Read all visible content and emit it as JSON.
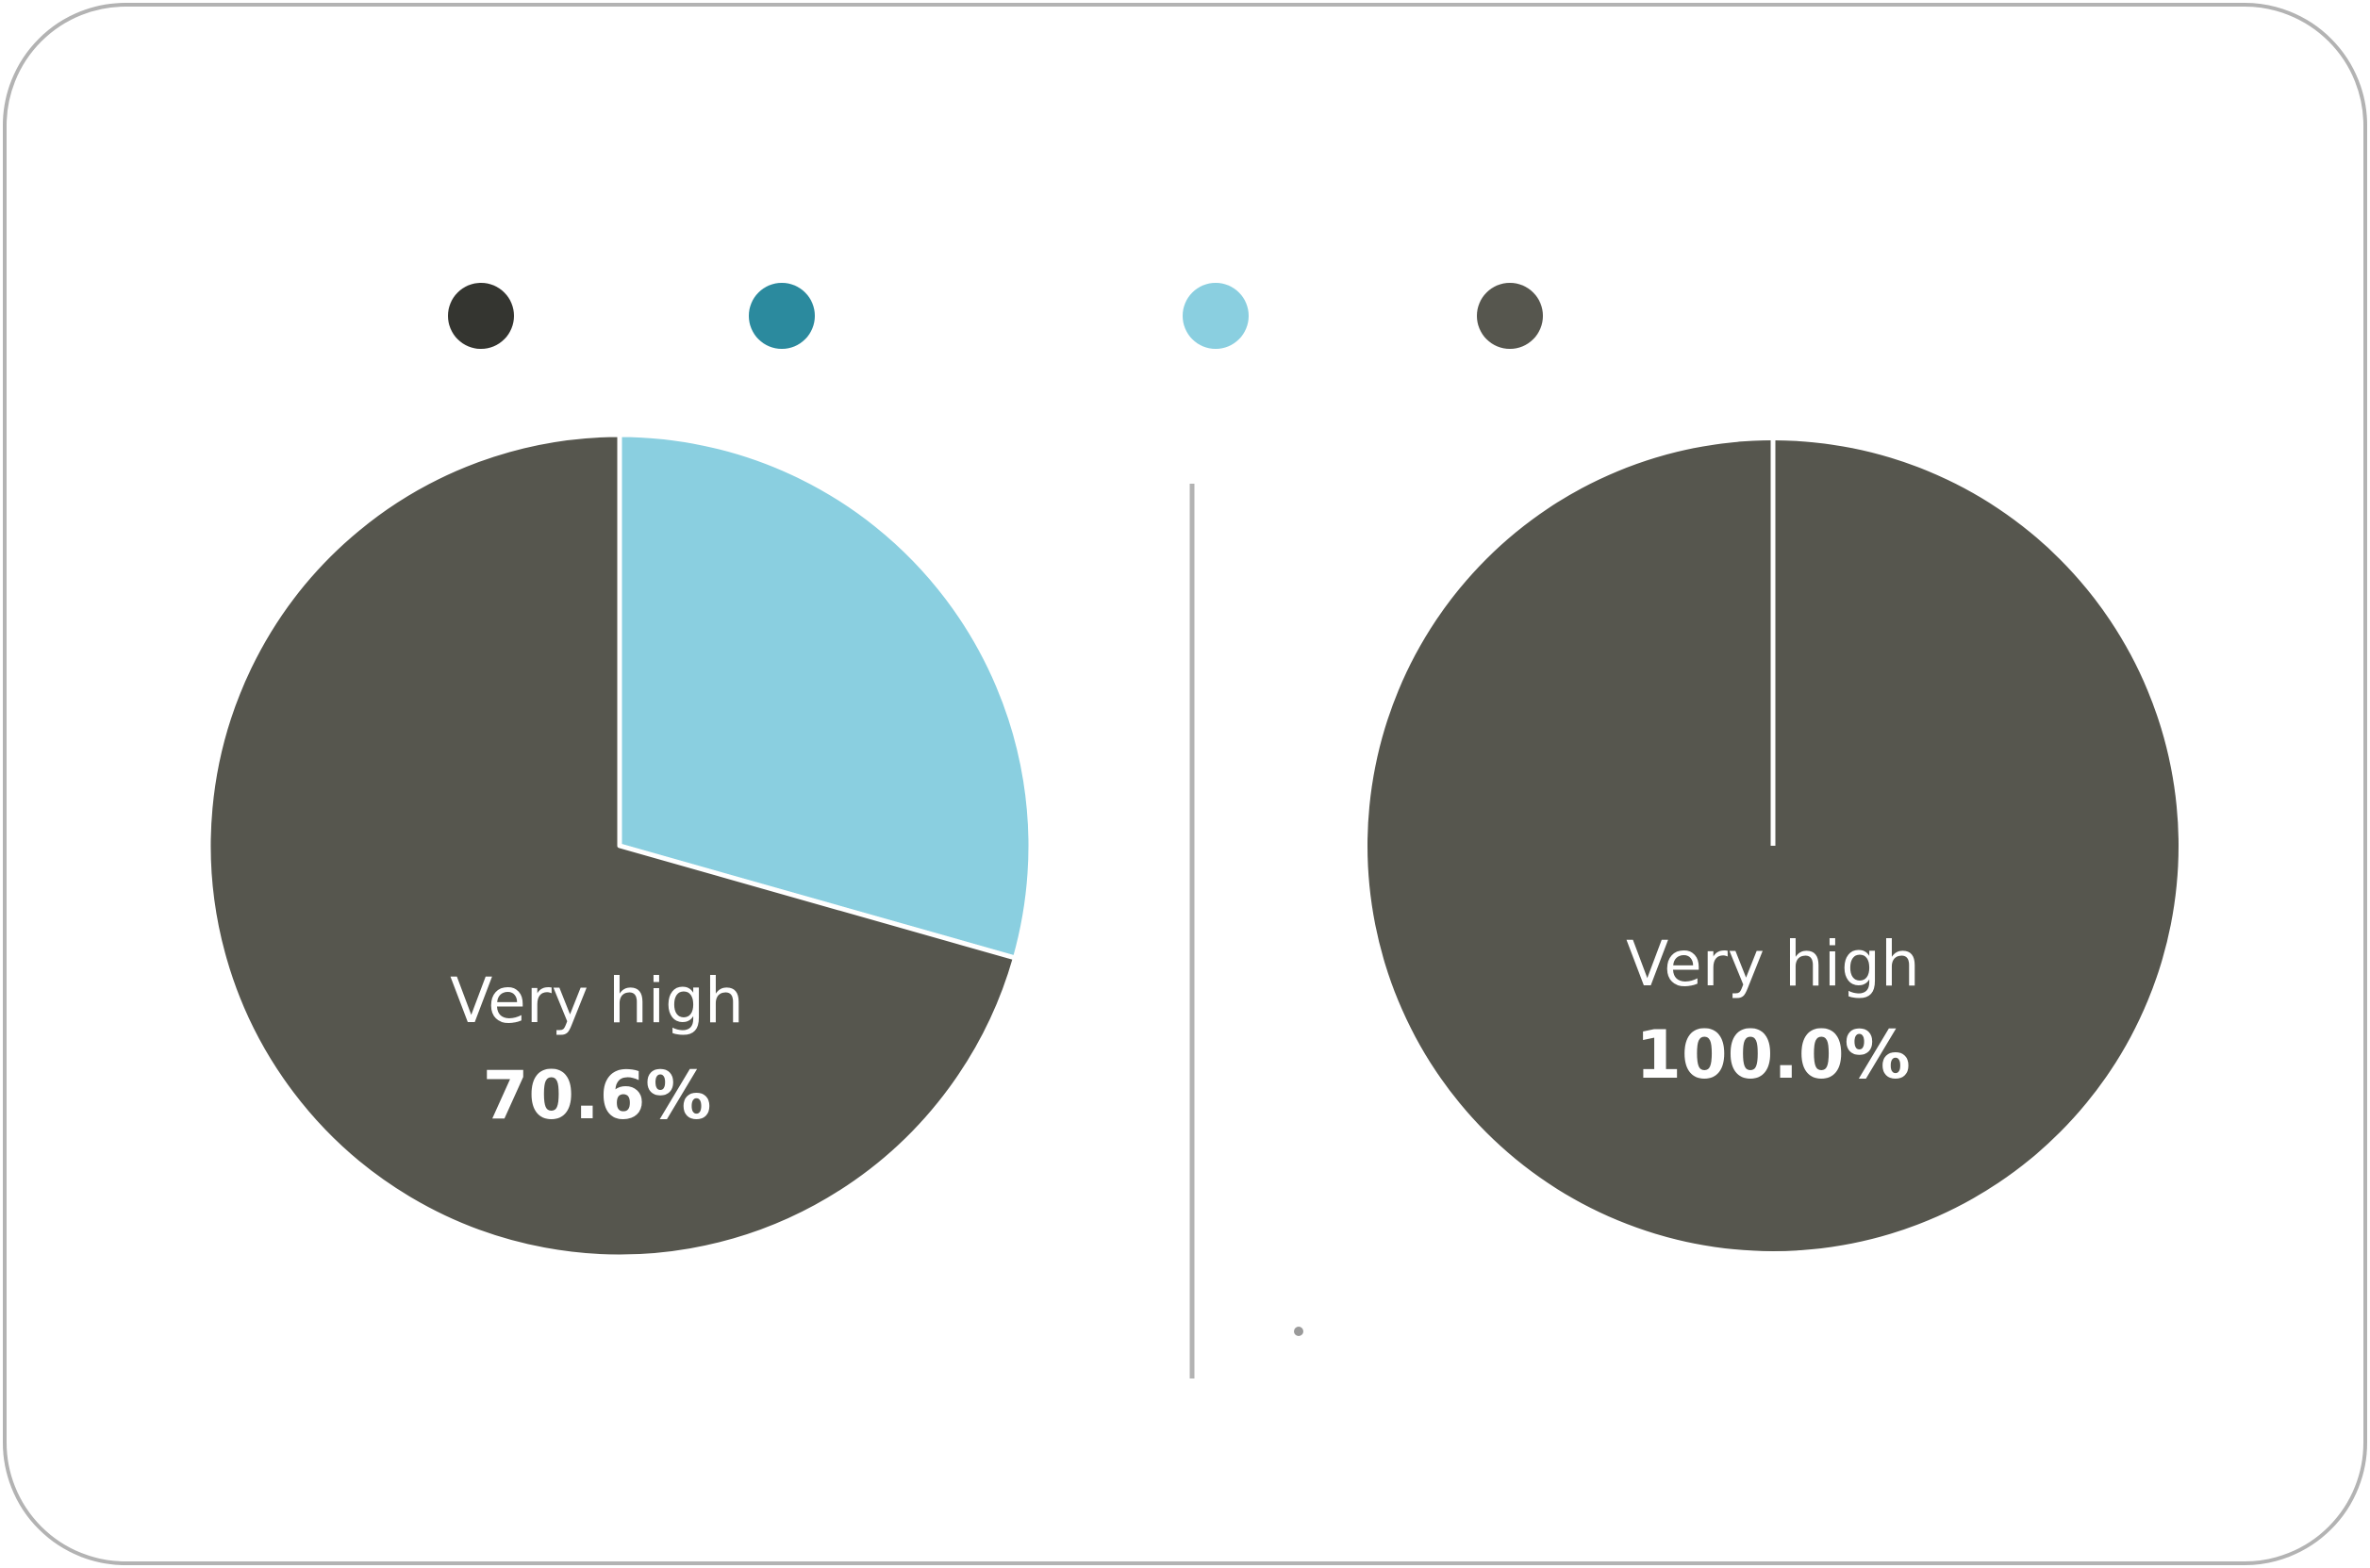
{
  "legend_colors": [
    "#343530",
    "#2b8a9e",
    "#8acfe0",
    "#56564e"
  ],
  "charts": [
    {
      "type": "pie",
      "categories": [
        null,
        "Very high"
      ],
      "values": [
        29.4,
        70.6
      ],
      "value_labels": [
        null,
        "70.6%"
      ],
      "colors": [
        "#8acfe0",
        "#56564e"
      ]
    },
    {
      "type": "pie",
      "categories": [
        "Very high"
      ],
      "values": [
        100
      ],
      "value_labels": [
        "100.0%"
      ],
      "colors": [
        "#56564e"
      ]
    }
  ]
}
